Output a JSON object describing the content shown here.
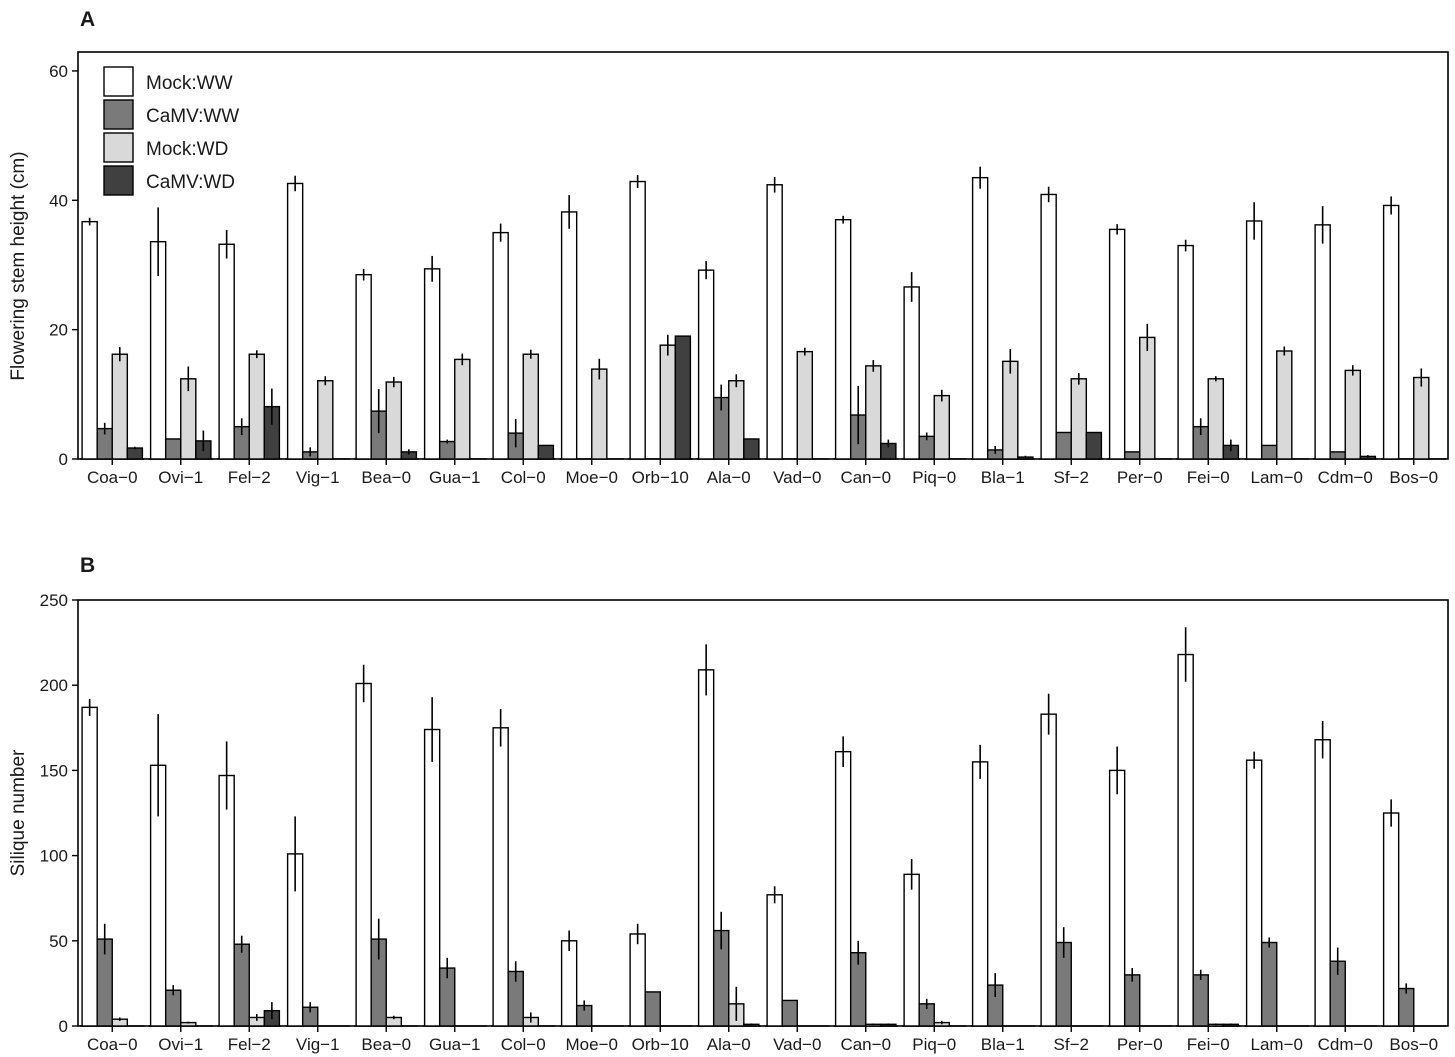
{
  "colors": {
    "Mock:WW": "#ffffff",
    "CaMV:WW": "#7a7a7a",
    "Mock:WD": "#d9d9d9",
    "CaMV:WD": "#404040"
  },
  "chart_data": [
    {
      "type": "bar",
      "panel": "A",
      "ylabel": "Flowering stem height (cm)",
      "ylim": [
        0,
        62
      ],
      "yticks": [
        0,
        20,
        40,
        60
      ],
      "legend": {
        "placement": "top-left",
        "entries": [
          "Mock:WW",
          "CaMV:WW",
          "Mock:WD",
          "CaMV:WD"
        ]
      },
      "categories": [
        "Coa−0",
        "Ovi−1",
        "Fel−2",
        "Vig−1",
        "Bea−0",
        "Gua−1",
        "Col−0",
        "Moe−0",
        "Orb−10",
        "Ala−0",
        "Vad−0",
        "Can−0",
        "Piq−0",
        "Bla−1",
        "Sf−2",
        "Per−0",
        "Fei−0",
        "Lam−0",
        "Cdm−0",
        "Bos−0"
      ],
      "series": [
        {
          "name": "Mock:WW",
          "values": [
            36.7,
            33.6,
            33.2,
            42.6,
            28.5,
            29.4,
            35.0,
            38.2,
            42.9,
            29.2,
            42.4,
            37.0,
            26.6,
            43.5,
            40.9,
            35.5,
            33.0,
            36.8,
            36.2,
            39.2
          ],
          "errors": [
            0.6,
            5.3,
            2.2,
            1.2,
            0.9,
            2.0,
            1.4,
            2.6,
            1.0,
            1.4,
            1.2,
            0.6,
            2.3,
            1.7,
            1.2,
            0.8,
            0.9,
            2.9,
            2.9,
            1.4
          ]
        },
        {
          "name": "CaMV:WW",
          "values": [
            4.7,
            3.1,
            5.0,
            1.1,
            7.4,
            2.7,
            4.0,
            0,
            0,
            9.5,
            0,
            6.8,
            3.5,
            1.4,
            4.1,
            1.1,
            5.0,
            2.1,
            1.1,
            0
          ],
          "errors": [
            0.9,
            0,
            1.3,
            0.7,
            3.4,
            0.3,
            2.2,
            0,
            0,
            2.0,
            0,
            4.5,
            0.6,
            0.6,
            0,
            0,
            1.3,
            0,
            0,
            0
          ]
        },
        {
          "name": "Mock:WD",
          "values": [
            16.2,
            12.4,
            16.2,
            12.1,
            11.9,
            15.4,
            16.2,
            13.9,
            17.6,
            12.1,
            16.6,
            14.4,
            9.8,
            15.1,
            12.4,
            18.8,
            12.4,
            16.7,
            13.7,
            12.6
          ],
          "errors": [
            1.1,
            1.9,
            0.6,
            0.7,
            0.8,
            0.9,
            0.7,
            1.6,
            1.6,
            1.0,
            0.6,
            0.9,
            0.9,
            1.9,
            0.9,
            2.1,
            0.4,
            0.7,
            0.8,
            1.4
          ]
        },
        {
          "name": "CaMV:WD",
          "values": [
            1.7,
            2.8,
            8.1,
            0,
            1.1,
            0,
            2.1,
            0,
            19.0,
            3.1,
            0,
            2.4,
            0,
            0.3,
            4.1,
            0,
            2.1,
            0,
            0.4,
            0
          ],
          "errors": [
            0.2,
            1.6,
            2.8,
            0,
            0.4,
            0,
            0,
            0,
            0,
            0,
            0,
            0.6,
            0,
            0.2,
            0,
            0,
            0.9,
            0,
            0.2,
            0
          ]
        }
      ]
    },
    {
      "type": "bar",
      "panel": "B",
      "ylabel": "Silique number",
      "ylim": [
        0,
        250
      ],
      "yticks": [
        0,
        50,
        100,
        150,
        200,
        250
      ],
      "categories": [
        "Coa−0",
        "Ovi−1",
        "Fel−2",
        "Vig−1",
        "Bea−0",
        "Gua−1",
        "Col−0",
        "Moe−0",
        "Orb−10",
        "Ala−0",
        "Vad−0",
        "Can−0",
        "Piq−0",
        "Bla−1",
        "Sf−2",
        "Per−0",
        "Fei−0",
        "Lam−0",
        "Cdm−0",
        "Bos−0"
      ],
      "series": [
        {
          "name": "Mock:WW",
          "values": [
            187,
            153,
            147,
            101,
            201,
            174,
            175,
            50,
            54,
            209,
            77,
            161,
            89,
            155,
            183,
            150,
            218,
            156,
            168,
            125
          ],
          "errors": [
            5,
            30,
            20,
            22,
            11,
            19,
            11,
            6,
            6,
            15,
            5,
            9,
            9,
            10,
            12,
            14,
            16,
            5,
            11,
            8
          ]
        },
        {
          "name": "CaMV:WW",
          "values": [
            51,
            21,
            48,
            11,
            51,
            34,
            32,
            12,
            20,
            56,
            15,
            43,
            13,
            24,
            49,
            30,
            30,
            49,
            38,
            22
          ],
          "errors": [
            9,
            3,
            5,
            3,
            12,
            6,
            6,
            3,
            0,
            11,
            0,
            7,
            3,
            7,
            9,
            4,
            3,
            3,
            8,
            3
          ]
        },
        {
          "name": "Mock:WD",
          "values": [
            4,
            2,
            5,
            0,
            5,
            0,
            5,
            0,
            0,
            13,
            0,
            1,
            2,
            0,
            0,
            0,
            1,
            0,
            0,
            0
          ],
          "errors": [
            1,
            0.5,
            2,
            0,
            1,
            0,
            3,
            0,
            0,
            10,
            0,
            0.5,
            1,
            0,
            0,
            0,
            0.5,
            0,
            0,
            0
          ]
        },
        {
          "name": "CaMV:WD",
          "values": [
            0,
            0,
            9,
            0,
            0,
            0,
            0,
            0,
            0,
            1,
            0,
            1,
            0,
            0,
            0,
            0,
            1,
            0,
            0,
            0
          ],
          "errors": [
            0,
            0,
            5,
            0,
            0,
            0,
            0,
            0,
            0,
            0.5,
            0,
            0.5,
            0,
            0,
            0,
            0,
            0.5,
            0,
            0,
            0
          ]
        }
      ]
    }
  ]
}
